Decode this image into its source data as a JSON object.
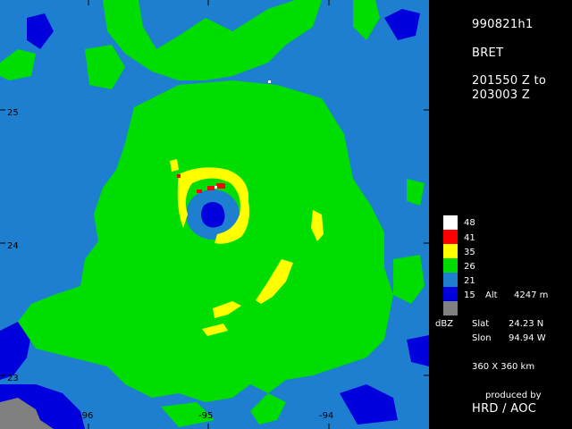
{
  "header": {
    "flight_id": "990821h1",
    "storm_name": "BRET",
    "time_start": "201550 Z to",
    "time_end": "203003 Z"
  },
  "legend": {
    "unit_label": "dBZ",
    "levels": [
      {
        "value": "48",
        "color": "#ffffff"
      },
      {
        "value": "41",
        "color": "#ff0000"
      },
      {
        "value": "35",
        "color": "#ffff00"
      },
      {
        "value": "26",
        "color": "#00dd00"
      },
      {
        "value": "21",
        "color": "#1e7fd0"
      },
      {
        "value": "15",
        "color": "#0000dd"
      },
      {
        "value": "",
        "color": "#808080"
      }
    ]
  },
  "info": {
    "alt_label": "Alt",
    "alt_value": "4247 m",
    "slat_label": "Slat",
    "slat_value": "24.23 N",
    "slon_label": "Slon",
    "slon_value": "94.94 W",
    "domain_size": "360 X 360 km",
    "produced_by": "produced by",
    "producer": "HRD / AOC"
  },
  "axes": {
    "lat_labels": [
      "25",
      "24",
      "23"
    ],
    "lon_labels": [
      "-96",
      "-95",
      "-94"
    ]
  },
  "colors": {
    "background": "#1e7fd0",
    "green": "#00dd00",
    "yellow": "#ffff00",
    "red": "#ff0000",
    "deep_blue": "#0000dd",
    "land_gray": "#808080"
  }
}
